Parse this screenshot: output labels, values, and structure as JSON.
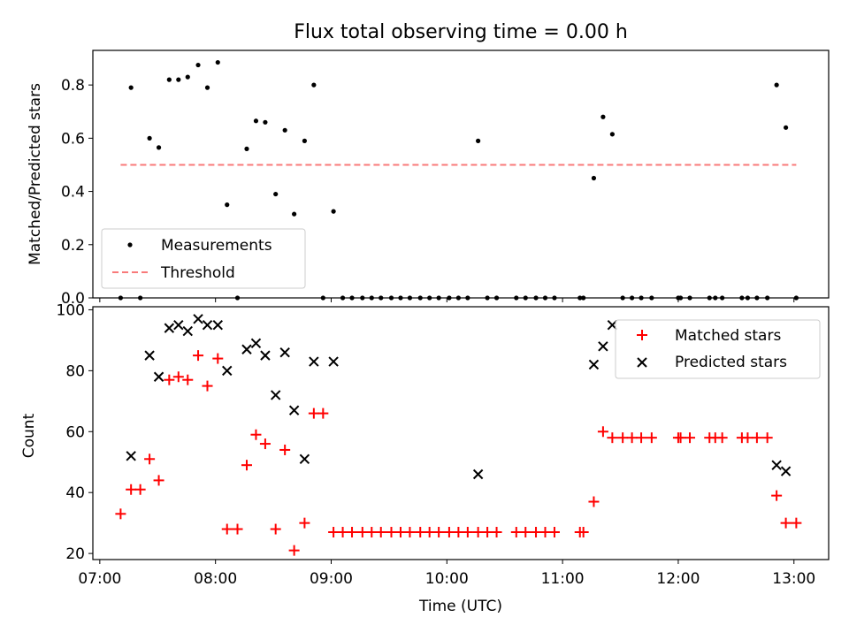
{
  "title": "Flux total observing time = 0.00 h",
  "chart_data": [
    {
      "type": "scatter",
      "panel": "top",
      "ylabel": "Matched/Predicted stars",
      "xlabel": "",
      "ylim": [
        0,
        0.93
      ],
      "xlim_hours": [
        6.94,
        13.3
      ],
      "yticks": [
        0.0,
        0.2,
        0.4,
        0.6,
        0.8
      ],
      "ytick_labels": [
        "0.0",
        "0.2",
        "0.4",
        "0.6",
        "0.8"
      ],
      "legend_position": "lower-left",
      "legend": [
        "Measurements",
        "Threshold"
      ],
      "colors": {
        "measurements": "#000000",
        "threshold": "#f87a7a"
      },
      "series": [
        {
          "name": "Measurements",
          "x_hours": [
            7.18,
            7.27,
            7.35,
            7.43,
            7.51,
            7.6,
            7.68,
            7.76,
            7.85,
            7.93,
            8.02,
            8.1,
            8.19,
            8.27,
            8.35,
            8.43,
            8.52,
            8.6,
            8.68,
            8.77,
            8.85,
            8.93,
            9.02,
            9.1,
            9.18,
            9.27,
            9.35,
            9.43,
            9.52,
            9.6,
            9.68,
            9.77,
            9.85,
            9.93,
            10.02,
            10.1,
            10.18,
            10.27,
            10.35,
            10.43,
            10.6,
            10.68,
            10.77,
            10.85,
            10.93,
            11.15,
            11.18,
            11.27,
            11.35,
            11.43,
            11.52,
            11.6,
            11.68,
            11.77,
            12.0,
            12.02,
            12.1,
            12.27,
            12.32,
            12.38,
            12.55,
            12.6,
            12.68,
            12.77,
            12.85,
            12.93,
            13.02
          ],
          "y": [
            0.0,
            0.79,
            0.0,
            0.6,
            0.565,
            0.82,
            0.82,
            0.83,
            0.875,
            0.79,
            0.885,
            0.35,
            0.0,
            0.56,
            0.665,
            0.66,
            0.39,
            0.63,
            0.315,
            0.59,
            0.8,
            0.0,
            0.325,
            0.0,
            0.0,
            0.0,
            0.0,
            0.0,
            0.0,
            0.0,
            0.0,
            0.0,
            0.0,
            0.0,
            0.0,
            0.0,
            0.0,
            0.59,
            0.0,
            0.0,
            0.0,
            0.0,
            0.0,
            0.0,
            0.0,
            0.0,
            0.0,
            0.45,
            0.68,
            0.615,
            0.0,
            0.0,
            0.0,
            0.0,
            0.0,
            0.0,
            0.0,
            0.0,
            0.0,
            0.0,
            0.0,
            0.0,
            0.0,
            0.0,
            0.8,
            0.64,
            0.0
          ]
        },
        {
          "name": "Threshold",
          "x_hours": [
            7.18,
            13.02
          ],
          "y": [
            0.5,
            0.5
          ]
        }
      ]
    },
    {
      "type": "scatter",
      "panel": "bottom",
      "xlabel": "Time (UTC)",
      "ylabel": "Count",
      "ylim": [
        18,
        101
      ],
      "xlim_hours": [
        6.94,
        13.3
      ],
      "yticks": [
        20,
        40,
        60,
        80,
        100
      ],
      "ytick_labels": [
        "20",
        "40",
        "60",
        "80",
        "100"
      ],
      "xticks_hours": [
        7,
        8,
        9,
        10,
        11,
        12,
        13
      ],
      "xtick_labels": [
        "07:00",
        "08:00",
        "09:00",
        "10:00",
        "11:00",
        "12:00",
        "13:00"
      ],
      "legend_position": "top-right",
      "legend": [
        "Matched stars",
        "Predicted stars"
      ],
      "colors": {
        "matched": "#ff0000",
        "predicted": "#000000"
      },
      "series": [
        {
          "name": "Matched stars",
          "x_hours": [
            7.18,
            7.27,
            7.35,
            7.43,
            7.51,
            7.6,
            7.68,
            7.76,
            7.85,
            7.93,
            8.02,
            8.1,
            8.19,
            8.27,
            8.35,
            8.43,
            8.52,
            8.6,
            8.68,
            8.77,
            8.85,
            8.93,
            9.02,
            9.1,
            9.18,
            9.27,
            9.35,
            9.43,
            9.52,
            9.6,
            9.68,
            9.77,
            9.85,
            9.93,
            10.02,
            10.1,
            10.18,
            10.27,
            10.35,
            10.43,
            10.6,
            10.68,
            10.77,
            10.85,
            10.93,
            11.15,
            11.18,
            11.27,
            11.35,
            11.43,
            11.52,
            11.6,
            11.68,
            11.77,
            12.0,
            12.02,
            12.1,
            12.27,
            12.32,
            12.38,
            12.55,
            12.6,
            12.68,
            12.77,
            12.85,
            12.93,
            13.02
          ],
          "y": [
            33,
            41,
            41,
            51,
            44,
            77,
            78,
            77,
            85,
            75,
            84,
            28,
            28,
            49,
            59,
            56,
            28,
            54,
            21,
            30,
            66,
            66,
            27,
            27,
            27,
            27,
            27,
            27,
            27,
            27,
            27,
            27,
            27,
            27,
            27,
            27,
            27,
            27,
            27,
            27,
            27,
            27,
            27,
            27,
            27,
            27,
            27,
            37,
            60,
            58,
            58,
            58,
            58,
            58,
            58,
            58,
            58,
            58,
            58,
            58,
            58,
            58,
            58,
            58,
            39,
            30,
            30
          ]
        },
        {
          "name": "Predicted stars",
          "x_hours": [
            7.27,
            7.43,
            7.51,
            7.6,
            7.68,
            7.76,
            7.85,
            7.93,
            8.02,
            8.1,
            8.27,
            8.35,
            8.43,
            8.52,
            8.6,
            8.68,
            8.77,
            8.85,
            9.02,
            10.27,
            11.27,
            11.35,
            11.43,
            12.85,
            12.93
          ],
          "y": [
            52,
            85,
            78,
            94,
            95,
            93,
            97,
            95,
            95,
            80,
            87,
            89,
            85,
            72,
            86,
            67,
            51,
            83,
            83,
            46,
            82,
            88,
            95,
            49,
            47
          ]
        }
      ]
    }
  ]
}
